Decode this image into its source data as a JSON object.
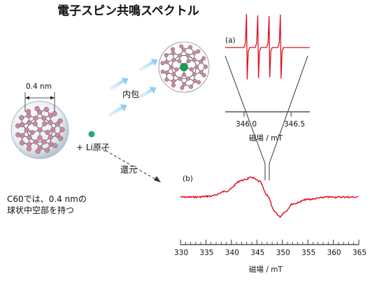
{
  "title": "電子スピン共鳴スペクトル",
  "labels": {
    "diameter": "0.4 nm",
    "li_atom": "+ Li原子",
    "encapsulation": "内包",
    "reduction": "還元",
    "caption_line1": "C60では、0.4 nmの",
    "caption_line2": "球状中空部を持つ"
  },
  "panel_a": {
    "label": "(a)",
    "x_ticks": [
      "346.0",
      "346.5"
    ],
    "xlabel": "磁場 / mT"
  },
  "panel_b": {
    "label": "(b)",
    "x_ticks": [
      "330",
      "335",
      "340",
      "345",
      "350",
      "355",
      "360",
      "365"
    ],
    "xlabel": "磁場 / mT"
  },
  "chart_data": [
    {
      "type": "line",
      "panel": "(a)",
      "xlabel": "磁場 / mT",
      "xlim": [
        345.8,
        346.7
      ],
      "ticks": [
        346.0,
        346.5
      ],
      "lines_at": [
        346.03,
        346.15,
        346.27,
        346.39
      ],
      "color": "#e0101c"
    },
    {
      "type": "line",
      "panel": "(b)",
      "xlabel": "磁場 / mT",
      "xlim": [
        330,
        365
      ],
      "ticks": [
        330,
        335,
        340,
        345,
        350,
        355,
        360,
        365
      ],
      "x": [
        330,
        333,
        336,
        339,
        342,
        344,
        345.5,
        347,
        348.5,
        349.5,
        350.5,
        352,
        355,
        359,
        362,
        365
      ],
      "y": [
        0,
        0,
        0.05,
        0.3,
        0.85,
        1.0,
        0.8,
        0.1,
        -0.75,
        -1.0,
        -0.75,
        -0.35,
        -0.12,
        0.0,
        0.0,
        0.0
      ],
      "color": "#e0101c"
    }
  ],
  "colors": {
    "spectrum": "#e0101c",
    "atom": "#c98aa0",
    "li": "#1aaa88",
    "arrow": "#9fd3f2",
    "axis": "#333333"
  }
}
